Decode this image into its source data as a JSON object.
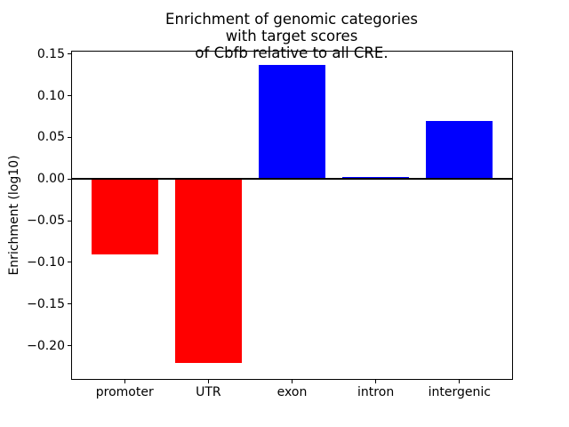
{
  "chart_data": {
    "type": "bar",
    "title": "Enrichment of genomic categories with target scores\nof Cbfb relative to all CRE.",
    "ylabel": "Enrichment (log10)",
    "xlabel": "",
    "categories": [
      "promoter",
      "UTR",
      "exon",
      "intron",
      "intergenic"
    ],
    "values": [
      -0.091,
      -0.221,
      0.137,
      0.002,
      0.07
    ],
    "bar_colors": [
      "#ff0000",
      "#ff0000",
      "#0000ff",
      "#0000ff",
      "#0000ff"
    ],
    "negative_color": "#ff0000",
    "positive_color": "#0000ff",
    "bar_width": 0.8,
    "xlim": [
      -0.64,
      4.64
    ],
    "ylim": [
      -0.241,
      0.154
    ],
    "yticks": [
      0.15,
      0.1,
      0.05,
      0.0,
      -0.05,
      -0.1,
      -0.15,
      -0.2
    ],
    "ytick_labels": [
      "0.15",
      "0.10",
      "0.05",
      "0.00",
      "−0.05",
      "−0.10",
      "−0.15",
      "−0.20"
    ],
    "zero_line": true,
    "zero_line_color": "#000000",
    "grid": false,
    "legend": "none",
    "frame_color": "#000000",
    "background": "#ffffff"
  }
}
